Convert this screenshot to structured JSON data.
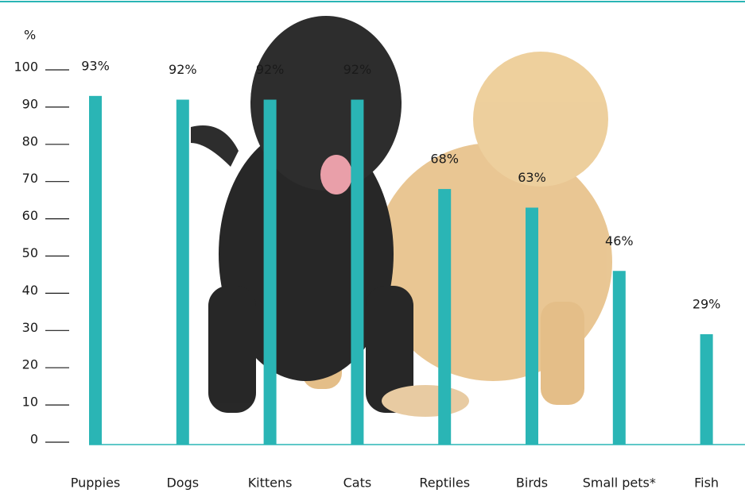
{
  "chart_data": {
    "type": "bar",
    "y_label": "%",
    "categories": [
      "Puppies",
      "Dogs",
      "Kittens",
      "Cats",
      "Reptiles",
      "Birds",
      "Small pets*",
      "Fish"
    ],
    "values": [
      93,
      92,
      92,
      92,
      68,
      63,
      46,
      29
    ],
    "value_labels": [
      "93%",
      "92%",
      "92%",
      "92%",
      "68%",
      "63%",
      "46%",
      "29%"
    ],
    "color": "#2ab5b5",
    "ylim": [
      0,
      100
    ],
    "yticks": [
      0,
      10,
      20,
      30,
      40,
      50,
      60,
      70,
      80,
      90,
      100
    ]
  }
}
